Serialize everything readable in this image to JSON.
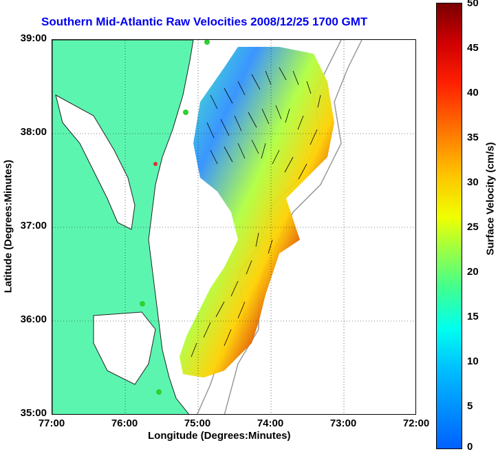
{
  "title": "Southern Mid-Atlantic Raw Velocities 2008/12/25 1700 GMT",
  "axes": {
    "xlabel": "Longitude (Degrees:Minutes)",
    "ylabel": "Latitude (Degrees:Minutes)",
    "xticks": [
      "77:00",
      "76:00",
      "75:00",
      "74:00",
      "73:00",
      "72:00"
    ],
    "yticks": [
      "39:00",
      "38:00",
      "37:00",
      "36:00",
      "35:00"
    ]
  },
  "colorbar": {
    "label": "Surface Velocity (cm/s)",
    "ticks": [
      "50",
      "45",
      "40",
      "35",
      "30",
      "25",
      "20",
      "15",
      "10",
      "5",
      "0"
    ],
    "min": 0,
    "max": 50
  },
  "colors": {
    "land": "#5cf5b0",
    "title": "#0000ee"
  }
}
